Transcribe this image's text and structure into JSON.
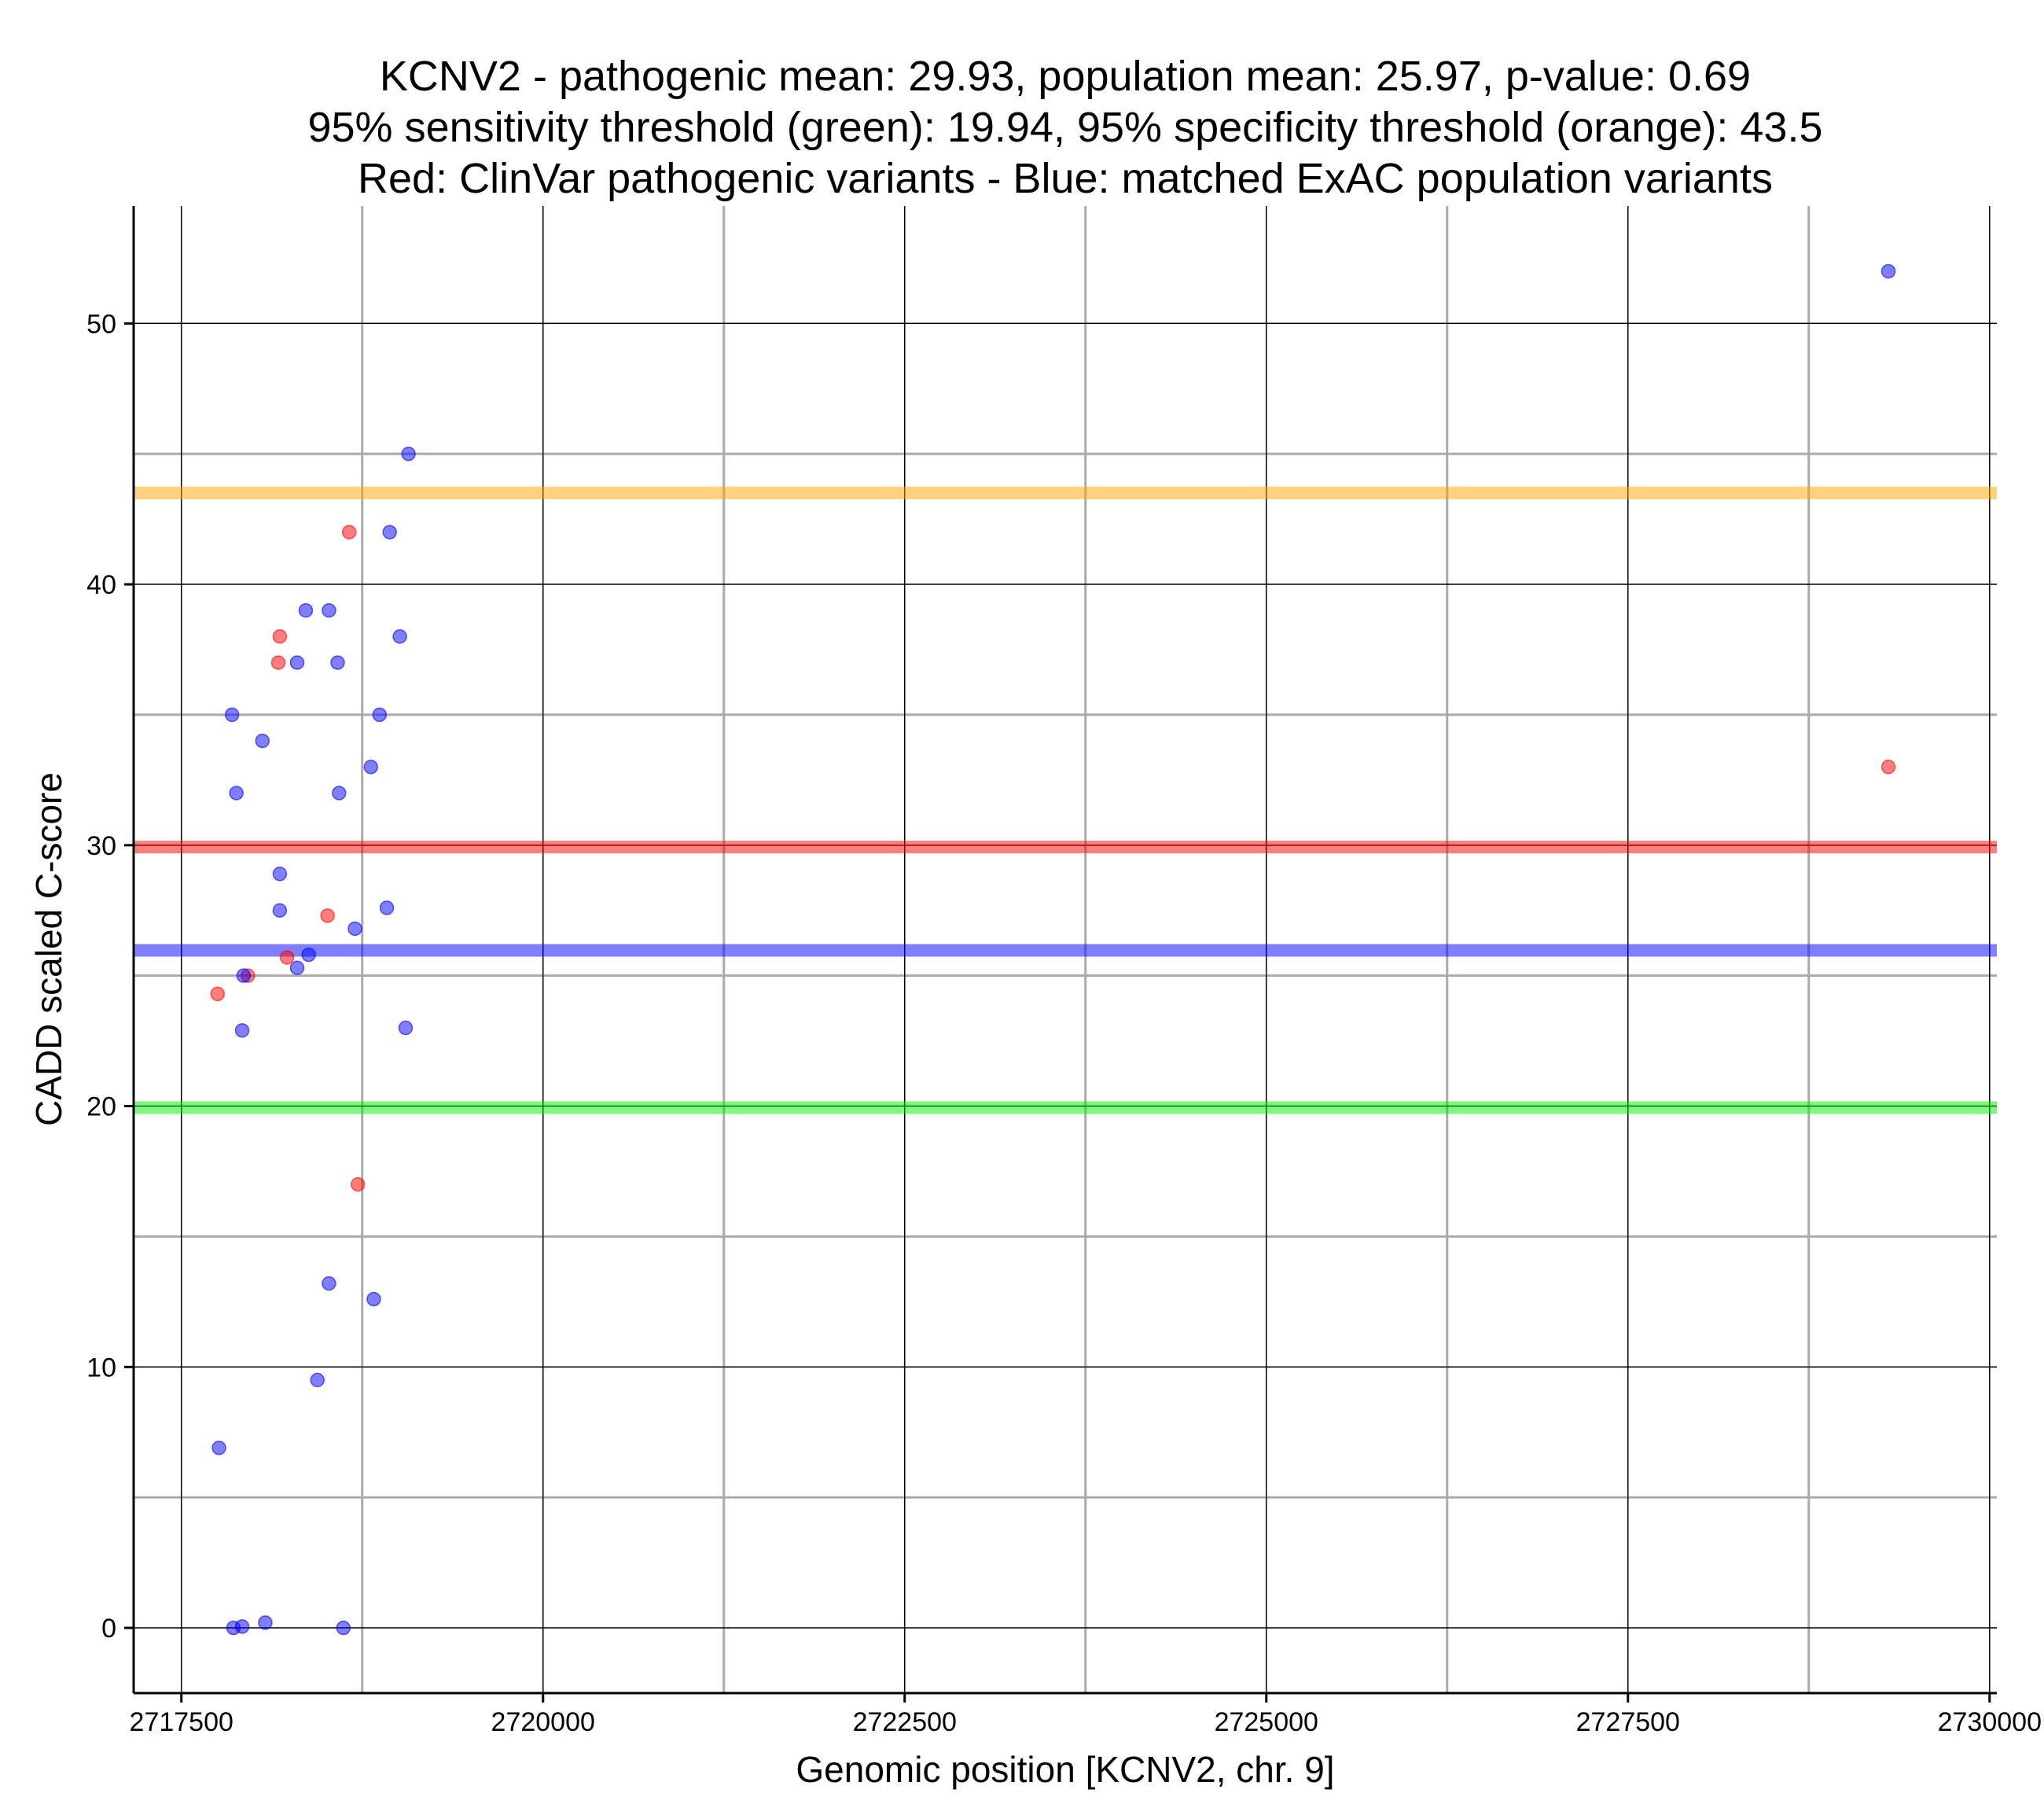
{
  "chart_data": {
    "type": "scatter",
    "title": [
      "KCNV2 - pathogenic mean: 29.93, population mean: 25.97, p-value: 0.69",
      "95% sensitivity threshold (green): 19.94, 95% specificity threshold (orange): 43.5",
      "Red: ClinVar pathogenic variants - Blue: matched ExAC population variants"
    ],
    "xlabel": "Genomic position [KCNV2, chr. 9]",
    "ylabel": "CADD scaled C-score",
    "xlim": [
      2717170,
      2730050
    ],
    "ylim": [
      -2.5,
      54.5
    ],
    "x_ticks": [
      2717500,
      2720000,
      2722500,
      2725000,
      2727500,
      2730000
    ],
    "x_tick_labels": [
      "2717500",
      "2720000",
      "2722500",
      "2725000",
      "2727500",
      "2730000"
    ],
    "y_ticks": [
      0,
      10,
      20,
      30,
      40,
      50
    ],
    "y_tick_labels": [
      "0",
      "10",
      "20",
      "30",
      "40",
      "50"
    ],
    "x_minor_grid": [
      2718750,
      2721250,
      2723750,
      2726250,
      2728750
    ],
    "y_minor_grid": [
      5,
      15,
      25,
      35,
      45
    ],
    "grid": true,
    "colors": {
      "pathogenic": "#ff0000",
      "population": "#0000ff",
      "sensitivity": "#00ee00",
      "specificity": "#ffa500",
      "grid_major": "#000000",
      "grid_minor": "#aaaaaa"
    },
    "hlines": [
      {
        "name": "95% specificity threshold",
        "y": 43.5,
        "color": "#ffa500"
      },
      {
        "name": "pathogenic mean",
        "y": 29.93,
        "color": "#ff0000"
      },
      {
        "name": "population mean",
        "y": 25.97,
        "color": "#0000ff"
      },
      {
        "name": "95% sensitivity threshold",
        "y": 19.94,
        "color": "#00ee00"
      }
    ],
    "series": [
      {
        "name": "ClinVar pathogenic variants",
        "color": "#ff0000",
        "points": [
          [
            2718660,
            42.0
          ],
          [
            2718180,
            38.0
          ],
          [
            2718170,
            37.0
          ],
          [
            2718510,
            27.3
          ],
          [
            2718230,
            25.7
          ],
          [
            2717960,
            25.0
          ],
          [
            2717750,
            24.3
          ],
          [
            2718720,
            17.0
          ],
          [
            2729300,
            33.0
          ]
        ]
      },
      {
        "name": "matched ExAC population variants",
        "color": "#0000ff",
        "points": [
          [
            2729300,
            52.0
          ],
          [
            2719070,
            45.0
          ],
          [
            2718940,
            42.0
          ],
          [
            2718360,
            39.0
          ],
          [
            2718520,
            39.0
          ],
          [
            2719010,
            38.0
          ],
          [
            2718300,
            37.0
          ],
          [
            2718580,
            37.0
          ],
          [
            2717850,
            35.0
          ],
          [
            2718870,
            35.0
          ],
          [
            2718060,
            34.0
          ],
          [
            2718810,
            33.0
          ],
          [
            2717880,
            32.0
          ],
          [
            2718590,
            32.0
          ],
          [
            2718180,
            28.9
          ],
          [
            2718180,
            27.5
          ],
          [
            2718920,
            27.6
          ],
          [
            2718700,
            26.8
          ],
          [
            2718380,
            25.8
          ],
          [
            2718300,
            25.3
          ],
          [
            2717930,
            25.0
          ],
          [
            2717920,
            22.9
          ],
          [
            2719050,
            23.0
          ],
          [
            2718520,
            13.2
          ],
          [
            2718830,
            12.6
          ],
          [
            2718440,
            9.5
          ],
          [
            2717760,
            6.9
          ],
          [
            2717860,
            0.0
          ],
          [
            2717920,
            0.05
          ],
          [
            2718080,
            0.2
          ],
          [
            2718620,
            0.0
          ]
        ]
      }
    ]
  }
}
